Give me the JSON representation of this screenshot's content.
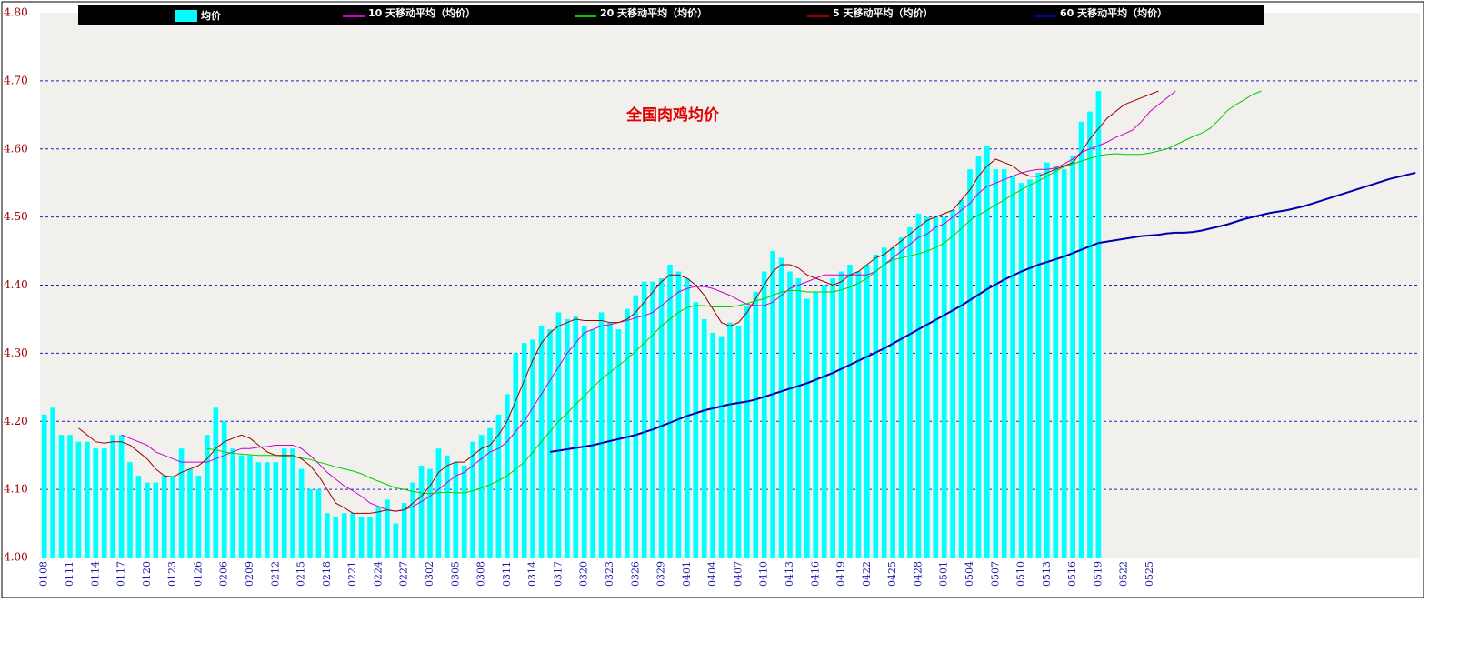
{
  "chart_data": {
    "type": "bar",
    "annotation": "全国肉鸡均价",
    "ylim": [
      4.0,
      4.8
    ],
    "yticks": [
      {
        "value": 4.0,
        "label": "4.00"
      },
      {
        "value": 4.1,
        "label": "4.10"
      },
      {
        "value": 4.2,
        "label": "4.20"
      },
      {
        "value": 4.3,
        "label": "4.30"
      },
      {
        "value": 4.4,
        "label": "4.40"
      },
      {
        "value": 4.5,
        "label": "4.50"
      },
      {
        "value": 4.6,
        "label": "4.60"
      },
      {
        "value": 4.7,
        "label": "4.70"
      },
      {
        "value": 4.8,
        "label": "4.80"
      }
    ],
    "grid": true,
    "categories": [
      "0108",
      null,
      null,
      "0111",
      null,
      null,
      "0114",
      null,
      null,
      "0117",
      null,
      null,
      "0120",
      null,
      null,
      "0123",
      null,
      null,
      "0126",
      null,
      null,
      "0206",
      null,
      null,
      "0209",
      null,
      null,
      "0212",
      null,
      null,
      "0215",
      null,
      null,
      "0218",
      null,
      null,
      "0221",
      null,
      null,
      "0224",
      null,
      null,
      "0227",
      null,
      null,
      "0302",
      null,
      null,
      "0305",
      null,
      null,
      "0308",
      null,
      null,
      "0311",
      null,
      null,
      "0314",
      null,
      null,
      "0317",
      null,
      null,
      "0320",
      null,
      null,
      "0323",
      null,
      null,
      "0326",
      null,
      null,
      "0329",
      null,
      null,
      "0401",
      null,
      null,
      "0404",
      null,
      null,
      "0407",
      null,
      null,
      "0410",
      null,
      null,
      "0413",
      null,
      null,
      "0416",
      null,
      null,
      "0419",
      null,
      null,
      "0422",
      null,
      null,
      "0425",
      null,
      null,
      "0428",
      null,
      null,
      "0501",
      null,
      null,
      "0504",
      null,
      null,
      "0507",
      null,
      null,
      "0510",
      null,
      null,
      "0513",
      null,
      null,
      "0516",
      null,
      null,
      "0519",
      null,
      null,
      "0522",
      null,
      null,
      "0525",
      null,
      null,
      null,
      null,
      null,
      null,
      null,
      null,
      null,
      null,
      null,
      null,
      null,
      null,
      null,
      null,
      null,
      null,
      null,
      null,
      null,
      null,
      null,
      null,
      null,
      null,
      null,
      null,
      null,
      null,
      null
    ],
    "series": [
      {
        "name": "均价",
        "type": "bar",
        "color": "#00ffff",
        "values": [
          4.21,
          4.22,
          4.18,
          4.18,
          4.17,
          4.17,
          4.16,
          4.16,
          4.18,
          4.18,
          4.14,
          4.12,
          4.11,
          4.11,
          4.12,
          4.12,
          4.16,
          4.13,
          4.12,
          4.18,
          4.22,
          4.2,
          4.16,
          4.15,
          4.15,
          4.14,
          4.14,
          4.14,
          4.16,
          4.16,
          4.13,
          4.1,
          4.1,
          4.065,
          4.06,
          4.065,
          4.065,
          4.06,
          4.06,
          4.075,
          4.085,
          4.05,
          4.08,
          4.11,
          4.135,
          4.13,
          4.16,
          4.15,
          4.14,
          4.135,
          4.17,
          4.18,
          4.19,
          4.21,
          4.24,
          4.3,
          4.315,
          4.32,
          4.34,
          4.335,
          4.36,
          4.35,
          4.355,
          4.34,
          4.335,
          4.36,
          4.345,
          4.335,
          4.365,
          4.385,
          4.405,
          4.405,
          4.41,
          4.43,
          4.42,
          4.41,
          4.375,
          4.35,
          4.33,
          4.325,
          4.345,
          4.34,
          4.37,
          4.39,
          4.42,
          4.45,
          4.44,
          4.42,
          4.41,
          4.38,
          4.39,
          4.4,
          4.41,
          4.42,
          4.43,
          4.42,
          4.43,
          4.445,
          4.455,
          4.455,
          4.47,
          4.485,
          4.505,
          4.5,
          4.5,
          4.5,
          4.51,
          4.525,
          4.57,
          4.59,
          4.605,
          4.57,
          4.57,
          4.56,
          4.55,
          4.555,
          4.565,
          4.58,
          4.575,
          4.57,
          4.59,
          4.64,
          4.655,
          4.685,
          null,
          null,
          null,
          null,
          null,
          null,
          null,
          null,
          null,
          null,
          null,
          null,
          null,
          null,
          null,
          null,
          null,
          null,
          null,
          null,
          null,
          null,
          null,
          null,
          null,
          null,
          null,
          null,
          null,
          null,
          null,
          null,
          null,
          null,
          null,
          null,
          null
        ]
      },
      {
        "name": "10 天移动平均（均价）",
        "type": "line",
        "color": "#cc00cc",
        "values": [
          null,
          null,
          null,
          null,
          null,
          null,
          null,
          null,
          null,
          4.18,
          4.175,
          4.17,
          4.165,
          4.155,
          4.15,
          4.145,
          4.14,
          4.14,
          4.14,
          4.14,
          4.145,
          4.15,
          4.155,
          4.16,
          4.16,
          4.162,
          4.163,
          4.165,
          4.165,
          4.165,
          4.16,
          4.15,
          4.138,
          4.125,
          4.115,
          4.105,
          4.098,
          4.09,
          4.08,
          4.075,
          4.07,
          4.068,
          4.07,
          4.075,
          4.082,
          4.09,
          4.1,
          4.11,
          4.12,
          4.125,
          4.135,
          4.145,
          4.155,
          4.16,
          4.17,
          4.185,
          4.2,
          4.22,
          4.24,
          4.26,
          4.28,
          4.3,
          4.315,
          4.33,
          4.335,
          4.34,
          4.342,
          4.345,
          4.348,
          4.352,
          4.355,
          4.36,
          4.37,
          4.38,
          4.39,
          4.395,
          4.398,
          4.398,
          4.395,
          4.39,
          4.385,
          4.378,
          4.372,
          4.37,
          4.37,
          4.375,
          4.385,
          4.395,
          4.4,
          4.405,
          4.41,
          4.415,
          4.415,
          4.415,
          4.415,
          4.415,
          4.415,
          4.42,
          4.43,
          4.44,
          4.45,
          4.46,
          4.47,
          4.475,
          4.485,
          4.49,
          4.5,
          4.51,
          4.52,
          4.535,
          4.545,
          4.55,
          4.555,
          4.56,
          4.565,
          4.568,
          4.57,
          4.57,
          4.572,
          4.578,
          4.585,
          4.595,
          4.6,
          4.605,
          4.61,
          4.617,
          4.622,
          4.628,
          4.64,
          4.655,
          4.665,
          4.675,
          4.685,
          null,
          null,
          null,
          null,
          null,
          null,
          null,
          null,
          null,
          null,
          null,
          null,
          null,
          null,
          null,
          null,
          null,
          null,
          null,
          null,
          null,
          null,
          null,
          null,
          null,
          null,
          null,
          null
        ]
      },
      {
        "name": "20 天移动平均（均价）",
        "type": "line",
        "color": "#00cc00",
        "values": [
          null,
          null,
          null,
          null,
          null,
          null,
          null,
          null,
          null,
          null,
          null,
          null,
          null,
          null,
          null,
          null,
          null,
          null,
          null,
          4.16,
          4.158,
          4.155,
          4.153,
          4.152,
          4.151,
          4.15,
          4.15,
          4.15,
          4.149,
          4.148,
          4.146,
          4.144,
          4.14,
          4.137,
          4.133,
          4.13,
          4.127,
          4.123,
          4.117,
          4.112,
          4.107,
          4.102,
          4.1,
          4.097,
          4.095,
          4.094,
          4.095,
          4.096,
          4.095,
          4.095,
          4.098,
          4.102,
          4.107,
          4.113,
          4.12,
          4.13,
          4.14,
          4.155,
          4.17,
          4.185,
          4.2,
          4.212,
          4.225,
          4.237,
          4.25,
          4.262,
          4.272,
          4.282,
          4.292,
          4.303,
          4.315,
          4.327,
          4.34,
          4.35,
          4.36,
          4.367,
          4.37,
          4.37,
          4.368,
          4.368,
          4.368,
          4.37,
          4.373,
          4.377,
          4.38,
          4.385,
          4.39,
          4.392,
          4.392,
          4.39,
          4.39,
          4.39,
          4.39,
          4.393,
          4.397,
          4.403,
          4.41,
          4.42,
          4.43,
          4.437,
          4.44,
          4.443,
          4.446,
          4.45,
          4.455,
          4.462,
          4.472,
          4.483,
          4.495,
          4.503,
          4.51,
          4.518,
          4.525,
          4.533,
          4.54,
          4.547,
          4.553,
          4.56,
          4.567,
          4.574,
          4.578,
          4.582,
          4.586,
          4.59,
          4.592,
          4.593,
          4.592,
          4.592,
          4.592,
          4.594,
          4.597,
          4.6,
          4.606,
          4.612,
          4.618,
          4.623,
          4.63,
          4.642,
          4.656,
          4.665,
          4.672,
          4.68,
          4.685,
          null,
          null,
          null,
          null,
          null,
          null,
          null,
          null,
          null,
          null,
          null,
          null,
          null,
          null,
          null,
          null,
          null,
          null
        ]
      },
      {
        "name": "5 天移动平均（均价）",
        "type": "line",
        "color": "#990000",
        "values": [
          null,
          null,
          null,
          null,
          4.19,
          4.18,
          4.17,
          4.168,
          4.17,
          4.17,
          4.165,
          4.155,
          4.145,
          4.13,
          4.12,
          4.118,
          4.125,
          4.13,
          4.135,
          4.145,
          4.16,
          4.17,
          4.175,
          4.18,
          4.175,
          4.165,
          4.155,
          4.15,
          4.15,
          4.15,
          4.145,
          4.135,
          4.12,
          4.1,
          4.08,
          4.073,
          4.065,
          4.065,
          4.065,
          4.067,
          4.07,
          4.068,
          4.07,
          4.08,
          4.09,
          4.105,
          4.125,
          4.135,
          4.14,
          4.14,
          4.15,
          4.16,
          4.165,
          4.18,
          4.2,
          4.23,
          4.26,
          4.29,
          4.315,
          4.33,
          4.34,
          4.345,
          4.35,
          4.348,
          4.348,
          4.348,
          4.345,
          4.345,
          4.35,
          4.36,
          4.375,
          4.39,
          4.405,
          4.415,
          4.415,
          4.41,
          4.4,
          4.385,
          4.365,
          4.345,
          4.34,
          4.345,
          4.36,
          4.38,
          4.4,
          4.42,
          4.43,
          4.43,
          4.425,
          4.415,
          4.41,
          4.405,
          4.4,
          4.405,
          4.415,
          4.42,
          4.43,
          4.44,
          4.445,
          4.455,
          4.465,
          4.475,
          4.485,
          4.495,
          4.5,
          4.505,
          4.51,
          4.525,
          4.54,
          4.56,
          4.575,
          4.585,
          4.58,
          4.575,
          4.565,
          4.56,
          4.56,
          4.565,
          4.57,
          4.575,
          4.58,
          4.595,
          4.615,
          4.63,
          4.645,
          4.655,
          4.665,
          4.67,
          4.675,
          4.68,
          4.685,
          null,
          null,
          null,
          null,
          null,
          null,
          null,
          null,
          null,
          null,
          null,
          null,
          null,
          null,
          null,
          null,
          null,
          null,
          null,
          null,
          null,
          null,
          null,
          null,
          null,
          null,
          null,
          null,
          null,
          null
        ]
      },
      {
        "name": "60 天移动平均（均价）",
        "type": "line",
        "color": "#0000aa",
        "values": [
          null,
          null,
          null,
          null,
          null,
          null,
          null,
          null,
          null,
          null,
          null,
          null,
          null,
          null,
          null,
          null,
          null,
          null,
          null,
          null,
          null,
          null,
          null,
          null,
          null,
          null,
          null,
          null,
          null,
          null,
          null,
          null,
          null,
          null,
          null,
          null,
          null,
          null,
          null,
          null,
          null,
          null,
          null,
          null,
          null,
          null,
          null,
          null,
          null,
          null,
          null,
          null,
          null,
          null,
          null,
          null,
          null,
          null,
          null,
          4.155,
          4.157,
          4.159,
          4.161,
          4.163,
          4.165,
          4.168,
          4.171,
          4.174,
          4.177,
          4.18,
          4.184,
          4.188,
          4.193,
          4.198,
          4.203,
          4.208,
          4.212,
          4.216,
          4.219,
          4.222,
          4.225,
          4.227,
          4.229,
          4.232,
          4.236,
          4.24,
          4.244,
          4.248,
          4.252,
          4.256,
          4.261,
          4.266,
          4.271,
          4.277,
          4.283,
          4.289,
          4.295,
          4.301,
          4.307,
          4.314,
          4.321,
          4.328,
          4.335,
          4.342,
          4.349,
          4.356,
          4.363,
          4.37,
          4.378,
          4.386,
          4.394,
          4.401,
          4.408,
          4.414,
          4.42,
          4.425,
          4.43,
          4.434,
          4.438,
          4.442,
          4.447,
          4.452,
          4.457,
          4.462,
          4.464,
          4.466,
          4.468,
          4.47,
          4.472,
          4.473,
          4.474,
          4.476,
          4.477,
          4.477,
          4.478,
          4.48,
          4.483,
          4.486,
          4.489,
          4.493,
          4.497,
          4.5,
          4.503,
          4.506,
          4.508,
          4.51,
          4.513,
          4.516,
          4.52,
          4.524,
          4.528,
          4.532,
          4.536,
          4.54,
          4.544,
          4.548,
          4.552,
          4.556,
          4.559,
          4.562,
          4.565
        ]
      }
    ]
  }
}
